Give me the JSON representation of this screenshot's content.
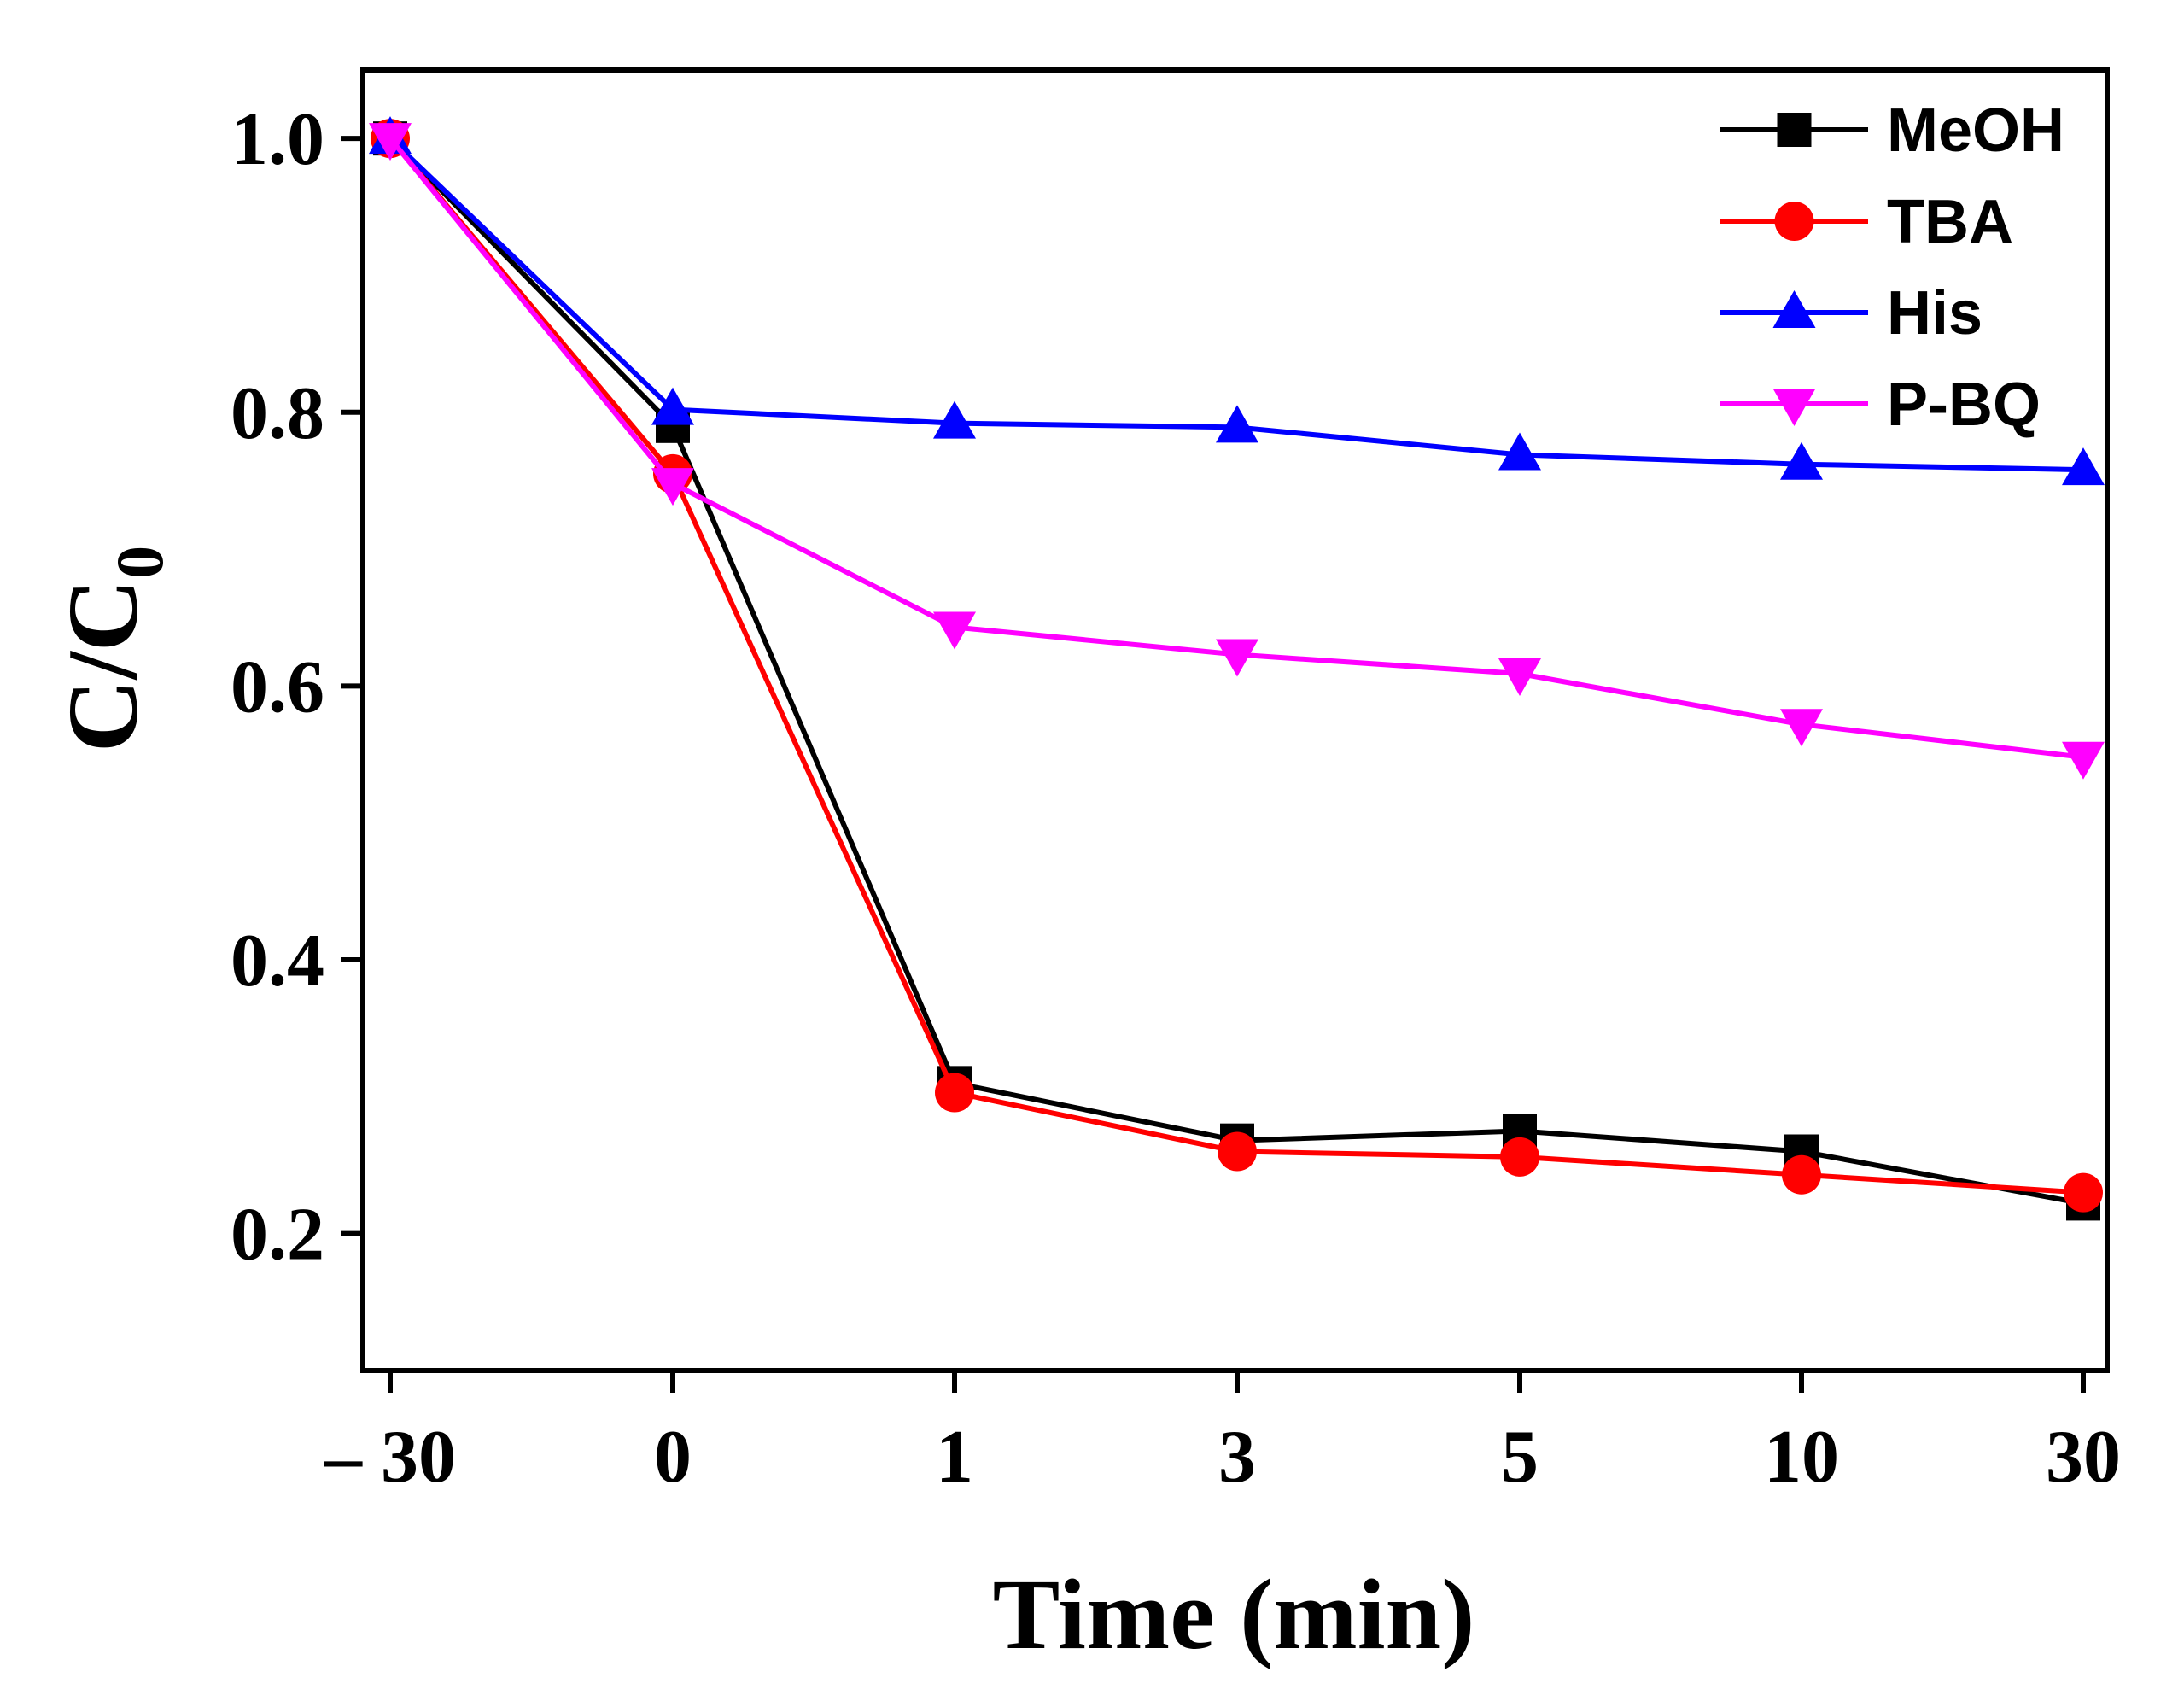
{
  "chart_data": {
    "type": "line",
    "title": "",
    "xlabel": "Time (min)",
    "ylabel_main": "C/C",
    "ylabel_sub": "0",
    "categories": [
      "– 30",
      "0",
      "1",
      "3",
      "5",
      "10",
      "30"
    ],
    "ylim": [
      0.1,
      1.05
    ],
    "yticks": [
      0.2,
      0.4,
      0.6,
      0.8,
      1.0
    ],
    "ytick_labels": [
      "0.2",
      "0.4",
      "0.6",
      "0.8",
      "1.0"
    ],
    "legend_position": "top-right",
    "grid": false,
    "series": [
      {
        "name": "MeOH",
        "color": "#000000",
        "marker": "square",
        "values": [
          1.0,
          0.79,
          0.31,
          0.268,
          0.275,
          0.26,
          0.222
        ]
      },
      {
        "name": "TBA",
        "color": "#ff0000",
        "marker": "circle",
        "values": [
          1.0,
          0.755,
          0.303,
          0.26,
          0.256,
          0.243,
          0.23
        ]
      },
      {
        "name": "His",
        "color": "#0000ff",
        "marker": "triangle-up",
        "values": [
          1.0,
          0.802,
          0.792,
          0.789,
          0.769,
          0.762,
          0.758
        ]
      },
      {
        "name": "P-BQ",
        "color": "#ff00ff",
        "marker": "triangle-down",
        "values": [
          1.0,
          0.748,
          0.643,
          0.623,
          0.609,
          0.572,
          0.548
        ]
      }
    ]
  }
}
